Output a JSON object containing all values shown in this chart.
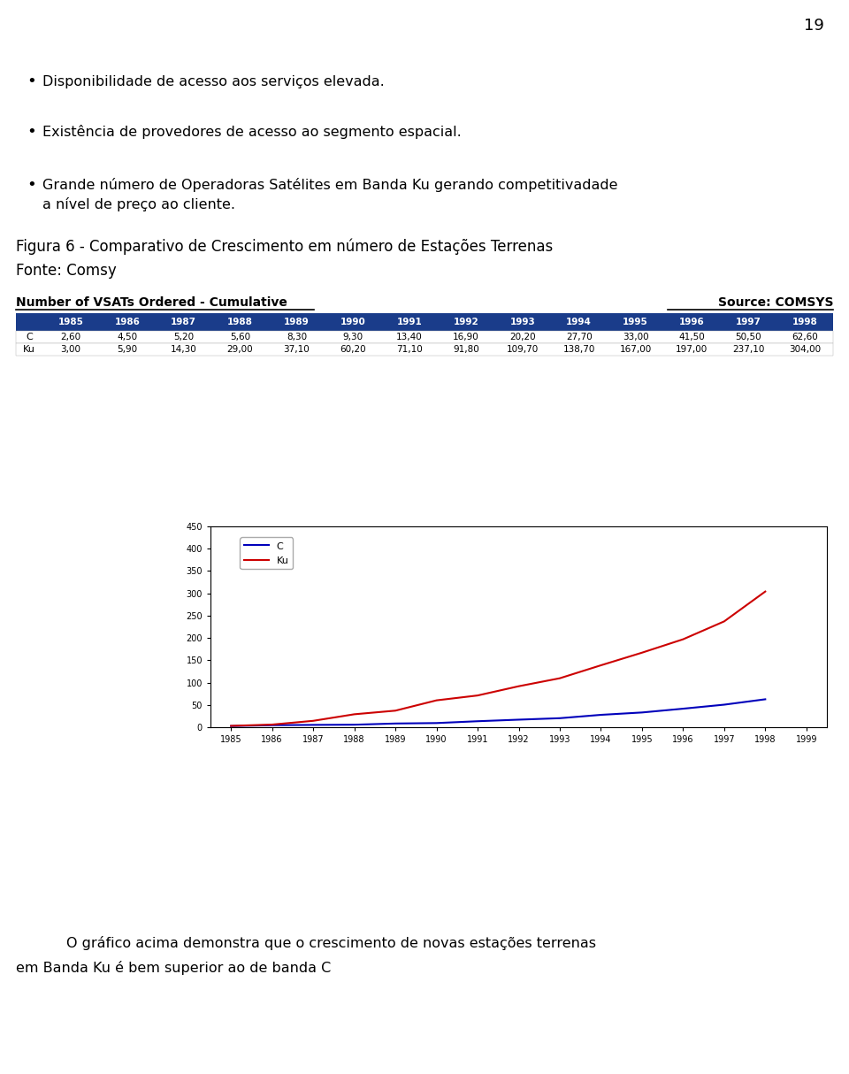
{
  "page_number": "19",
  "bullet_texts": [
    "Disponibilidade de acesso aos serviços elevada.",
    "Existência de provedores de acesso ao segmento espacial.",
    "Grande número de Operadoras Satélites em Banda Ku gerando competitivadade",
    "a nível de preço ao cliente."
  ],
  "figure_title": "Figura 6 - Comparativo de Crescimento em número de Estações Terrenas",
  "figure_source": "Fonte: Comsy",
  "chart_title": "Number of VSATs Ordered - Cumulative",
  "chart_source": "Source: COMSYS",
  "table_header": [
    "1985",
    "1986",
    "1987",
    "1988",
    "1989",
    "1990",
    "1991",
    "1992",
    "1993",
    "1994",
    "1995",
    "1996",
    "1997",
    "1998"
  ],
  "series_C": [
    2.6,
    4.5,
    5.2,
    5.6,
    8.3,
    9.3,
    13.4,
    16.9,
    20.2,
    27.7,
    33.0,
    41.5,
    50.5,
    62.6
  ],
  "series_Ku": [
    3.0,
    5.9,
    14.3,
    29.0,
    37.1,
    60.2,
    71.1,
    91.8,
    109.7,
    138.7,
    167.0,
    197.0,
    237.1,
    304.0
  ],
  "x_data_years": [
    1985,
    1986,
    1987,
    1988,
    1989,
    1990,
    1991,
    1992,
    1993,
    1994,
    1995,
    1996,
    1997,
    1998
  ],
  "x_ticks": [
    1985,
    1986,
    1987,
    1988,
    1989,
    1990,
    1991,
    1992,
    1993,
    1994,
    1995,
    1996,
    1997,
    1998,
    1999
  ],
  "y_ticks": [
    0,
    50,
    100,
    150,
    200,
    250,
    300,
    350,
    400,
    450
  ],
  "ylim": [
    0,
    450
  ],
  "color_C": "#0000bb",
  "color_Ku": "#cc0000",
  "header_bg": "#1a3c8a",
  "header_fg": "#ffffff",
  "bottom_text_1": "O gráfico acima demonstra que o crescimento de novas estações terrenas",
  "bottom_text_2": "em Banda Ku é bem superior ao de banda C",
  "bg_color": "#ffffff",
  "font_color": "#000000"
}
